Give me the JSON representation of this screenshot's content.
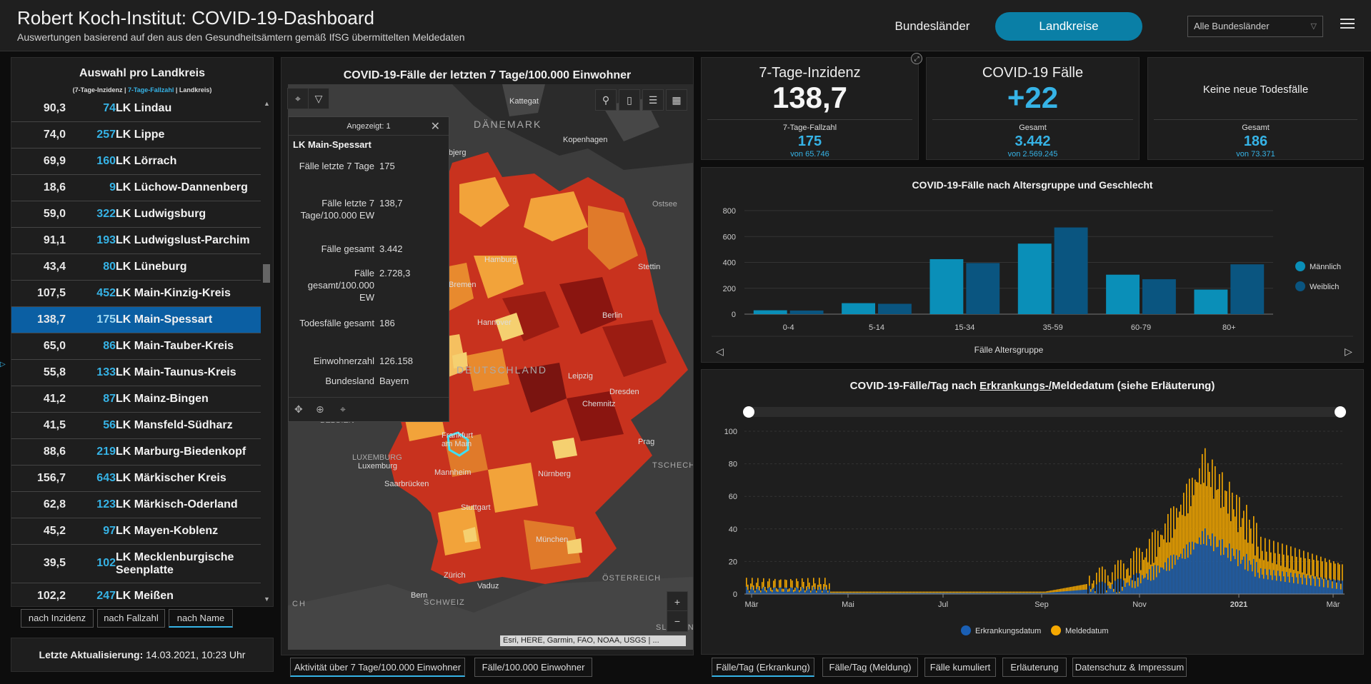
{
  "header": {
    "title": "Robert Koch-Institut: COVID-19-Dashboard",
    "subtitle": "Auswertungen basierend auf den aus den Gesundheitsämtern gemäß IfSG übermittelten Meldedaten",
    "btn_bundeslaender": "Bundesländer",
    "btn_landkreise": "Landkreise",
    "select_value": "Alle Bundesländer"
  },
  "left_panel": {
    "title": "Auswahl pro Landkreis",
    "legend_a": "(7-Tage-Inzidenz | ",
    "legend_b": "7-Tage-Fallzahl",
    "legend_c": " | Landkreis)",
    "rows": [
      {
        "inz": "90,3",
        "fz": "74",
        "name": "LK Lindau"
      },
      {
        "inz": "74,0",
        "fz": "257",
        "name": "LK Lippe"
      },
      {
        "inz": "69,9",
        "fz": "160",
        "name": "LK Lörrach"
      },
      {
        "inz": "18,6",
        "fz": "9",
        "name": "LK Lüchow-Dannenberg"
      },
      {
        "inz": "59,0",
        "fz": "322",
        "name": "LK Ludwigsburg"
      },
      {
        "inz": "91,1",
        "fz": "193",
        "name": "LK Ludwigslust-Parchim"
      },
      {
        "inz": "43,4",
        "fz": "80",
        "name": "LK Lüneburg"
      },
      {
        "inz": "107,5",
        "fz": "452",
        "name": "LK Main-Kinzig-Kreis"
      },
      {
        "inz": "138,7",
        "fz": "175",
        "name": "LK Main-Spessart"
      },
      {
        "inz": "65,0",
        "fz": "86",
        "name": "LK Main-Tauber-Kreis"
      },
      {
        "inz": "55,8",
        "fz": "133",
        "name": "LK Main-Taunus-Kreis"
      },
      {
        "inz": "41,2",
        "fz": "87",
        "name": "LK Mainz-Bingen"
      },
      {
        "inz": "41,5",
        "fz": "56",
        "name": "LK Mansfeld-Südharz"
      },
      {
        "inz": "88,6",
        "fz": "219",
        "name": "LK Marburg-Biedenkopf"
      },
      {
        "inz": "156,7",
        "fz": "643",
        "name": "LK Märkischer Kreis"
      },
      {
        "inz": "62,8",
        "fz": "123",
        "name": "LK Märkisch-Oderland"
      },
      {
        "inz": "45,2",
        "fz": "97",
        "name": "LK Mayen-Koblenz"
      },
      {
        "inz": "39,5",
        "fz": "102",
        "name": "LK Mecklenburgische Seenplatte"
      },
      {
        "inz": "102,2",
        "fz": "247",
        "name": "LK Meißen"
      }
    ],
    "sort_inzidenz": "nach Inzidenz",
    "sort_fallzahl": "nach Fallzahl",
    "sort_name": "nach Name",
    "update_label": "Letzte Aktualisierung:",
    "update_value": "14.03.2021, 10:23 Uhr"
  },
  "map": {
    "title": "COVID-19-Fälle der letzten 7 Tage/100.000 Einwohner",
    "labels": {
      "kattegat": "Kattegat",
      "daenemark": "DÄNEMARK",
      "kopenhagen": "Kopenhagen",
      "ostsee": "Ostsee",
      "stettin": "Stettin",
      "hamburg": "Hamburg",
      "bremen": "Bremen",
      "berlin": "Berlin",
      "hannover": "Hannover",
      "deutschland": "DEUTSCHLAND",
      "leipzig": "Leipzig",
      "dresden": "Dresden",
      "chemnitz": "Chemnitz",
      "frankfurt": "Frankfurt am Main",
      "prag": "Prag",
      "tschech": "TSCHECH",
      "luxemburg_cap": "LUXEMBURG",
      "luxemburg": "Luxemburg",
      "saarbruecken": "Saarbrücken",
      "mannheim": "Mannheim",
      "nuernberg": "Nürnberg",
      "stuttgart": "Stuttgart",
      "muenchen": "München",
      "oesterreich": "ÖSTERREICH",
      "zuerich": "Zürich",
      "vaduz": "Vaduz",
      "bern": "Bern",
      "schweiz": "SCHWEIZ",
      "slowen": "SLOWEN",
      "belgien": "BELGIEN",
      "ch": "CH",
      "olbjerg": "bjerg"
    },
    "popup": {
      "header": "Angezeigt: 1",
      "name": "LK Main-Spessart",
      "fields": [
        {
          "k": "Fälle letzte 7 Tage",
          "v": "175"
        },
        {
          "k": "Fälle letzte 7 Tage/100.000 EW",
          "v": "138,7"
        },
        {
          "k": "Fälle gesamt",
          "v": "3.442"
        },
        {
          "k": "Fälle gesamt/100.000 EW",
          "v": "2.728,3"
        },
        {
          "k": "Todesfälle gesamt",
          "v": "186"
        },
        {
          "k": "Einwohnerzahl",
          "v": "126.158"
        },
        {
          "k": "Bundesland",
          "v": "Bayern"
        }
      ]
    },
    "attribution": "Esri, HERE, Garmin, FAO, NOAA, USGS | ...",
    "tab_activity": "Aktivität über 7 Tage/100.000 Einwohner",
    "tab_faelle": "Fälle/100.000 Einwohner"
  },
  "kpis": {
    "inz_title": "7-Tage-Inzidenz",
    "inz_value": "138,7",
    "inz_sub_label": "7-Tage-Fallzahl",
    "inz_sub_value": "175",
    "inz_sub_of": "von 65.746",
    "cases_title": "COVID-19 Fälle",
    "cases_value": "+22",
    "cases_sub_label": "Gesamt",
    "cases_sub_value": "3.442",
    "cases_sub_of": "von 2.569.245",
    "death_title": "Keine neue Todesfälle",
    "death_sub_label": "Gesamt",
    "death_sub_value": "186",
    "death_sub_of": "von 73.371"
  },
  "age_chart": {
    "title": "COVID-19-Fälle nach Altersgruppe und Geschlecht",
    "xlabel": "Fälle Altersgruppe",
    "colors": {
      "m": "#0a8fb8",
      "w": "#0a5580"
    },
    "chart_data": {
      "type": "bar",
      "categories": [
        "0-4",
        "5-14",
        "15-34",
        "35-59",
        "60-79",
        "80+"
      ],
      "series": [
        {
          "name": "Männlich",
          "values": [
            30,
            85,
            425,
            545,
            305,
            190
          ]
        },
        {
          "name": "Weiblich",
          "values": [
            28,
            80,
            395,
            670,
            270,
            385
          ]
        }
      ],
      "ylim": [
        0,
        800
      ],
      "yticks": [
        0,
        200,
        400,
        600,
        800
      ],
      "legend": "right"
    }
  },
  "daily_chart": {
    "title_a": "COVID-19-Fälle/Tag nach ",
    "title_b": "Erkrankungs-/",
    "title_c": "Meldedatum (siehe Erläuterung)",
    "yticks": [
      0,
      20,
      40,
      60,
      80,
      100
    ],
    "xticks": [
      "Mär",
      "Mai",
      "Jul",
      "Sep",
      "Nov",
      "2021",
      "Mär"
    ],
    "legend_e": "Erkrankungsdatum",
    "legend_m": "Meldedatum",
    "colors": {
      "e": "#1a5fb4",
      "m": "#f5a800"
    },
    "chart_data": {
      "type": "bar",
      "x_range": [
        "2020-03",
        "2021-03"
      ],
      "ylim": [
        0,
        100
      ],
      "series": [
        {
          "name": "Erkrankungsdatum",
          "peak": 40
        },
        {
          "name": "Meldedatum",
          "peak": 88
        }
      ]
    }
  },
  "bottom_tabs": {
    "t1": "Fälle/Tag (Erkrankung)",
    "t2": "Fälle/Tag (Meldung)",
    "t3": "Fälle kumuliert",
    "t4": "Erläuterung",
    "t5": "Datenschutz & Impressum"
  }
}
